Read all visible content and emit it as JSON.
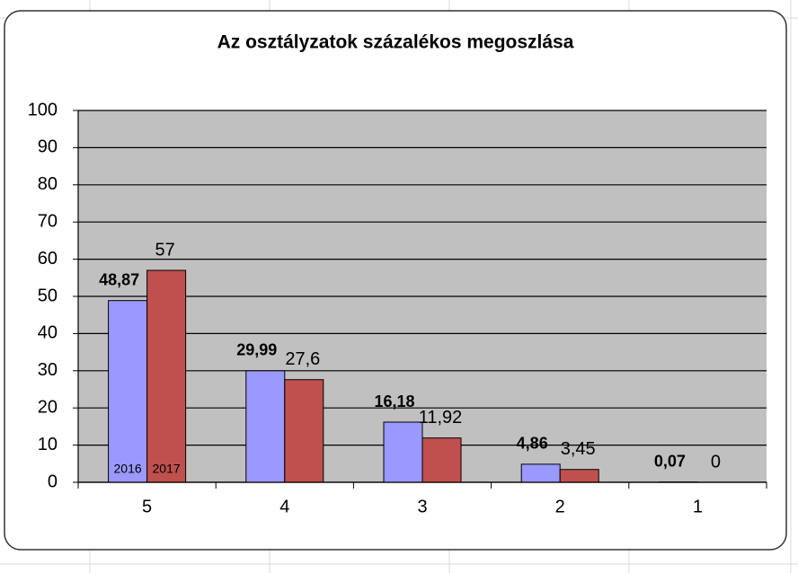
{
  "chart_data": {
    "type": "bar",
    "title": "Az osztályzatok százalékos megoszlása",
    "categories": [
      "5",
      "4",
      "3",
      "2",
      "1"
    ],
    "series": [
      {
        "name": "2016",
        "color": "#9999ff",
        "values": [
          48.87,
          29.99,
          16.18,
          4.86,
          0.07
        ],
        "value_labels": [
          "48,87",
          "29,99",
          "16,18",
          "4,86",
          "0,07"
        ]
      },
      {
        "name": "2017",
        "color": "#c0504d",
        "values": [
          57,
          27.6,
          11.92,
          3.45,
          0
        ],
        "value_labels": [
          "57",
          "27,6",
          "11,92",
          "3,45",
          "0"
        ]
      }
    ],
    "ylim": [
      0,
      100
    ],
    "yticks": [
      0,
      10,
      20,
      30,
      40,
      50,
      60,
      70,
      80,
      90,
      100
    ],
    "grid": true
  }
}
